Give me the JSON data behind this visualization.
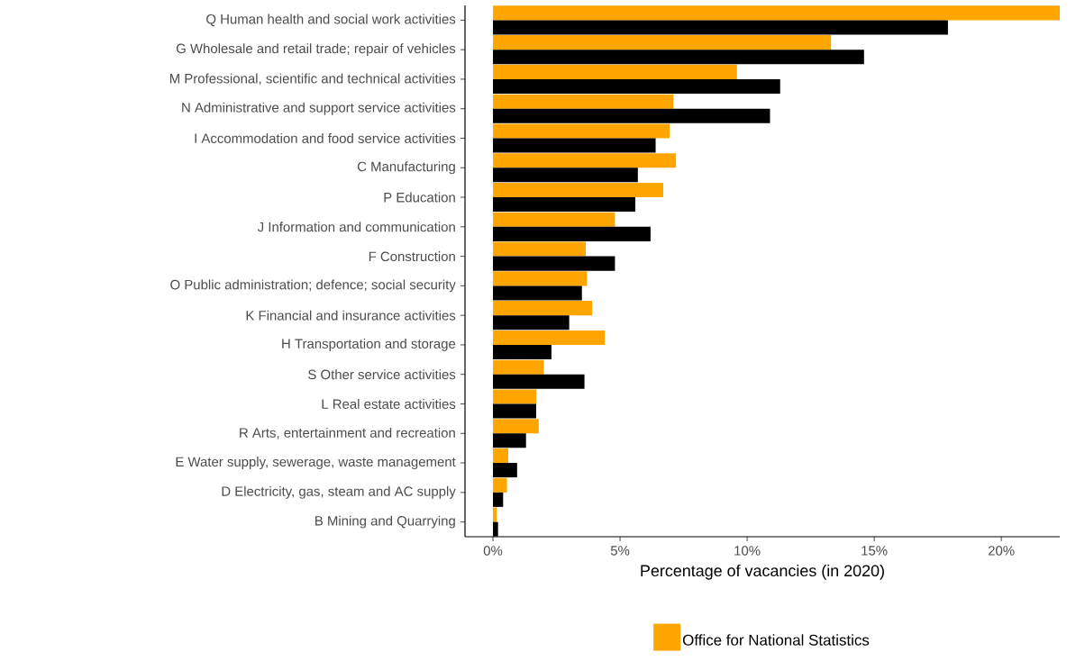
{
  "chart_data": {
    "type": "bar",
    "orientation": "horizontal",
    "xlabel": "Percentage of vacancies (in 2020)",
    "categories": [
      "Q Human health and social work activities",
      "G Wholesale and retail trade; repair of vehicles",
      "M Professional, scientific and technical activities",
      "N Administrative and support service activities",
      "I Accommodation and food service activities",
      "C Manufacturing",
      "P Education",
      "J Information and communication",
      "F Construction",
      "O Public administration; defence; social security",
      "K Financial and insurance activities",
      "H Transportation and storage",
      "S Other service activities",
      "L Real estate activities",
      "R Arts, entertainment and recreation",
      "E Water supply, sewerage, waste management",
      "D Electricity, gas, steam and AC supply",
      "B Mining and Quarrying"
    ],
    "series": [
      {
        "name": "Office for National Statistics",
        "color": "#ffa500",
        "values": [
          22.3,
          13.3,
          9.6,
          7.1,
          6.95,
          7.2,
          6.7,
          4.8,
          3.65,
          3.7,
          3.9,
          4.4,
          2.0,
          1.7,
          1.8,
          0.6,
          0.55,
          0.15
        ]
      },
      {
        "color": "#000000",
        "values": [
          17.9,
          14.6,
          11.3,
          10.9,
          6.4,
          5.7,
          5.6,
          6.2,
          4.8,
          3.5,
          3.0,
          2.3,
          3.6,
          1.7,
          1.3,
          0.95,
          0.4,
          0.2
        ]
      }
    ],
    "xlim": [
      -1.1,
      22.3
    ],
    "xticks": [
      {
        "value": 0,
        "label": "0%"
      },
      {
        "value": 5,
        "label": "5%"
      },
      {
        "value": 10,
        "label": "10%"
      },
      {
        "value": 15,
        "label": "15%"
      },
      {
        "value": 20,
        "label": "20%"
      }
    ],
    "grid": false,
    "legend": "bottom"
  }
}
